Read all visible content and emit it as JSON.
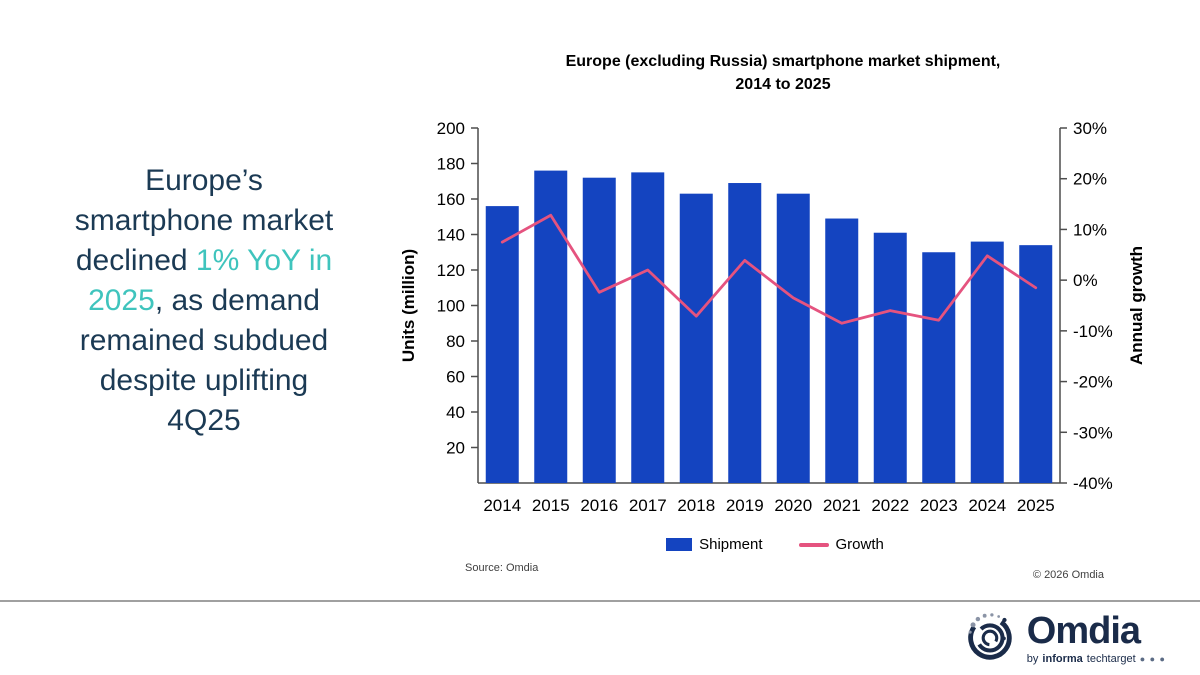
{
  "headline": {
    "full_text": "Europe’s smartphone market declined 1% YoY in 2025, as demand remained subdued despite uplifting 4Q25",
    "lines": [
      [
        {
          "t": "Europe’s"
        }
      ],
      [
        {
          "t": "smartphone market"
        }
      ],
      [
        {
          "t": "declined "
        },
        {
          "t": "1% YoY in",
          "hl": true
        }
      ],
      [
        {
          "t": "2025",
          "hl": true
        },
        {
          "t": ", as demand"
        }
      ],
      [
        {
          "t": "remained subdued"
        }
      ],
      [
        {
          "t": "despite uplifting"
        }
      ],
      [
        {
          "t": "4Q25"
        }
      ]
    ],
    "text_color": "#1b3a54",
    "highlight_color": "#3fc4bd"
  },
  "chart_data": {
    "type": "bar",
    "title": "Europe (excluding Russia) smartphone market shipment, 2014 to 2025",
    "title_lines": [
      "Europe (excluding Russia) smartphone market shipment,",
      "2014 to 2025"
    ],
    "categories": [
      "2014",
      "2015",
      "2016",
      "2017",
      "2018",
      "2019",
      "2020",
      "2021",
      "2022",
      "2023",
      "2024",
      "2025"
    ],
    "series": [
      {
        "name": "Shipment",
        "type": "bar",
        "axis": "left",
        "color": "#1444c0",
        "values": [
          156,
          176,
          172,
          175,
          163,
          169,
          163,
          149,
          141,
          130,
          136,
          134
        ]
      },
      {
        "name": "Growth",
        "type": "line",
        "axis": "right",
        "color": "#e5537f",
        "values": [
          7.5,
          12.8,
          -2.4,
          2.0,
          -7.1,
          3.9,
          -3.5,
          -8.5,
          -6.0,
          -7.9,
          4.8,
          -1.5
        ]
      }
    ],
    "left_axis": {
      "label": "Units (million)",
      "min": 0,
      "max": 200,
      "ticks": [
        200,
        180,
        160,
        140,
        120,
        100,
        80,
        60,
        40,
        20
      ]
    },
    "right_axis": {
      "label": "Annual growth",
      "min": -40,
      "max": 30,
      "ticks": [
        "30%",
        "20%",
        "10%",
        "0%",
        "-10%",
        "-20%",
        "-30%",
        "-40%"
      ]
    },
    "grid": false,
    "legend_position": "bottom"
  },
  "source": {
    "text": "Source: Omdia"
  },
  "copyright": {
    "text": "© 2026 Omdia"
  },
  "logo": {
    "wordmark": "Omdia",
    "byline_prefix": "by",
    "byline_bold": "informa",
    "byline_rest": "techtarget",
    "dots": "● ● ●",
    "navy": "#1a2b49"
  }
}
